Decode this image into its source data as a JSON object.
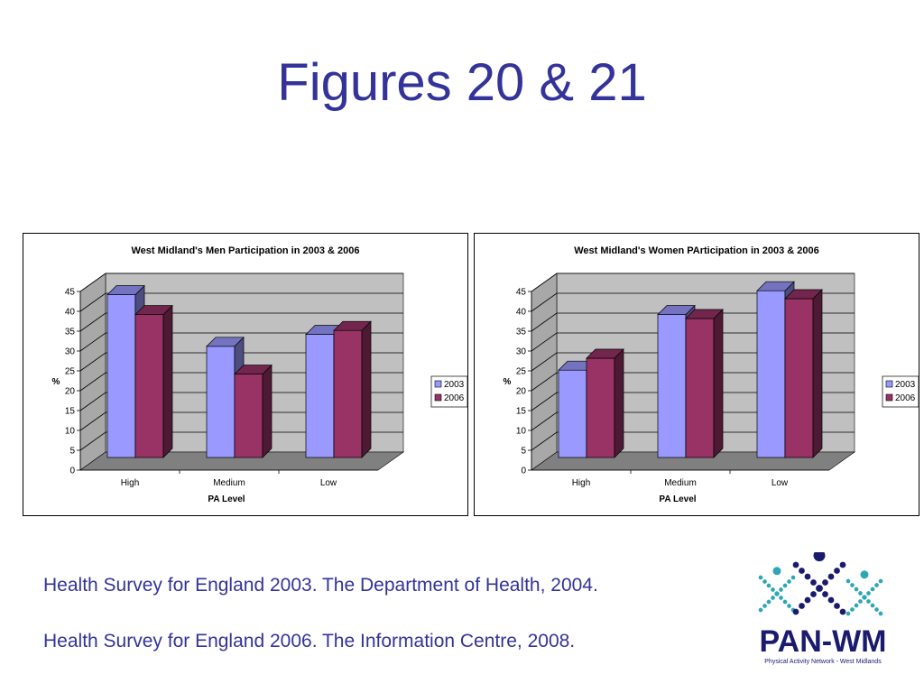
{
  "slide": {
    "title": "Figures 20 & 21",
    "citations": [
      "Health Survey for England 2003. The Department of Health, 2004.",
      "Health Survey for England 2006. The Information Centre, 2008."
    ]
  },
  "logo": {
    "name": "PAN-WM",
    "tagline": "Physical Activity Network - West Midlands"
  },
  "colors": {
    "title": "#333399",
    "series_2003": "#9999ff",
    "series_2006": "#993366",
    "wall": "#c0c0c0",
    "floor": "#808080"
  },
  "chart_data": [
    {
      "type": "bar",
      "title": "West Midland's Men Participation in 2003 & 2006",
      "xlabel": "PA Level",
      "ylabel": "%",
      "categories": [
        "High",
        "Medium",
        "Low"
      ],
      "series": [
        {
          "name": "2003",
          "values": [
            41,
            28,
            31
          ]
        },
        {
          "name": "2006",
          "values": [
            36,
            21,
            32
          ]
        }
      ],
      "ylim": [
        0,
        45
      ],
      "yticks": [
        0,
        5,
        10,
        15,
        20,
        25,
        30,
        35,
        40,
        45
      ],
      "grid": true,
      "legend": "right"
    },
    {
      "type": "bar",
      "title": "West Midland's Women PArticipation in 2003 & 2006",
      "xlabel": "PA Level",
      "ylabel": "%",
      "categories": [
        "High",
        "Medium",
        "Low"
      ],
      "series": [
        {
          "name": "2003",
          "values": [
            22,
            36,
            42
          ]
        },
        {
          "name": "2006",
          "values": [
            25,
            35,
            40
          ]
        }
      ],
      "ylim": [
        0,
        45
      ],
      "yticks": [
        0,
        5,
        10,
        15,
        20,
        25,
        30,
        35,
        40,
        45
      ],
      "grid": true,
      "legend": "right"
    }
  ]
}
